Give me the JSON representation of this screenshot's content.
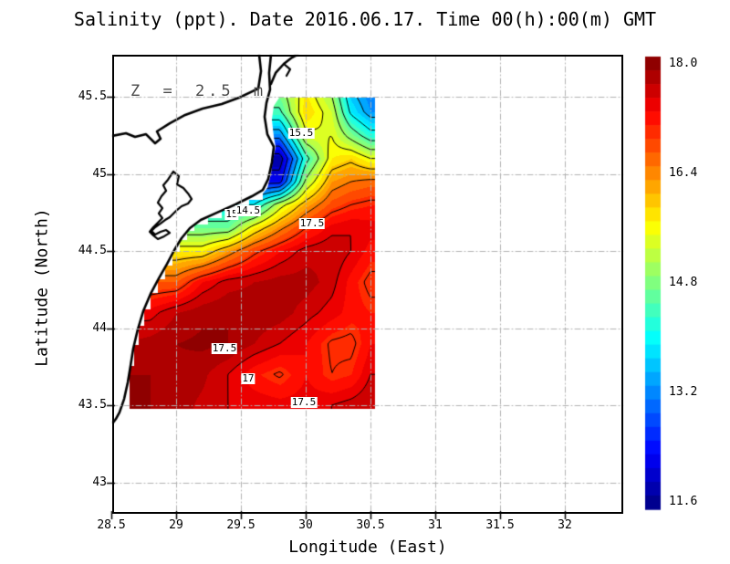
{
  "title": "Salinity (ppt). Date 2016.06.17. Time 00(h):00(m) GMT",
  "annotation": {
    "text": "Z = 2.5 m"
  },
  "axes": {
    "xlabel": "Longitude (East)",
    "ylabel": "Latitude (North)",
    "x_ticks": [
      "28.5",
      "29",
      "29.5",
      "30",
      "30.5",
      "31",
      "31.5",
      "32"
    ],
    "x_tick_values": [
      28.5,
      29,
      29.5,
      30,
      30.5,
      31,
      31.5,
      32
    ],
    "y_ticks": [
      "45.5",
      "45",
      "44.5",
      "44",
      "43.5",
      "43"
    ],
    "y_tick_values": [
      45.5,
      45,
      44.5,
      44,
      43.5,
      43
    ],
    "grid_x": [
      29,
      29.5,
      30,
      30.5,
      31,
      31.5,
      32
    ],
    "grid_y": [
      43,
      43.5,
      44,
      44.5,
      45,
      45.5
    ],
    "x_range": [
      28.5,
      32.45
    ],
    "y_range": [
      42.8,
      45.77
    ]
  },
  "colorbar": {
    "colormap": "jet",
    "min": 11.5,
    "max": 18.1,
    "step": 0.2,
    "tick_values": [
      18.0,
      16.4,
      14.8,
      13.2,
      11.6
    ],
    "tick_labels": [
      "18.0",
      "16.4",
      "14.8",
      "13.2",
      "11.6"
    ]
  },
  "chart_data": {
    "type": "heatmap",
    "variable": "Salinity",
    "units": "ppt",
    "date": "2016.06.17",
    "time": "00(h):00(m) GMT",
    "depth_label": "Z = 2.5 m",
    "colormap_range": [
      11.5,
      18.1
    ],
    "contour_interval": 0.5,
    "contour_levels": [
      12,
      12.5,
      13,
      13.5,
      14,
      14.5,
      15,
      15.5,
      16,
      16.5,
      17,
      17.5,
      18
    ],
    "lon": [
      28.6,
      28.8,
      29.0,
      29.2,
      29.4,
      29.6,
      29.8,
      30.0,
      30.2,
      30.35,
      30.5
    ],
    "lat": [
      45.55,
      45.4,
      45.25,
      45.1,
      44.95,
      44.8,
      44.65,
      44.5,
      44.3,
      44.1,
      43.9,
      43.7,
      43.5
    ],
    "values": [
      [
        null,
        null,
        null,
        null,
        null,
        null,
        14.9,
        15.7,
        14.9,
        13.5,
        13.1
      ],
      [
        null,
        null,
        null,
        null,
        null,
        null,
        14.4,
        15.9,
        15.3,
        13.9,
        13.3
      ],
      [
        null,
        null,
        null,
        null,
        null,
        null,
        13.2,
        15.4,
        15.5,
        14.8,
        14.2
      ],
      [
        null,
        null,
        null,
        null,
        null,
        null,
        11.7,
        14.3,
        15.7,
        15.9,
        15.5
      ],
      [
        null,
        null,
        null,
        null,
        null,
        null,
        12.3,
        15.1,
        16.3,
        16.5,
        16.6
      ],
      [
        null,
        null,
        null,
        null,
        null,
        14.0,
        15.3,
        16.2,
        16.8,
        17.0,
        17.1
      ],
      [
        null,
        null,
        null,
        null,
        14.7,
        15.7,
        16.4,
        17.0,
        17.4,
        17.5,
        17.4
      ],
      [
        null,
        null,
        null,
        15.7,
        16.3,
        16.9,
        17.3,
        17.6,
        17.7,
        17.5,
        17.2
      ],
      [
        null,
        null,
        16.7,
        17.3,
        17.6,
        17.7,
        17.8,
        17.8,
        17.6,
        17.2,
        16.9
      ],
      [
        null,
        17.4,
        17.7,
        17.85,
        17.9,
        17.85,
        17.8,
        17.6,
        17.4,
        17.2,
        17.1
      ],
      [
        17.7,
        17.8,
        17.9,
        17.95,
        17.9,
        17.7,
        17.5,
        17.3,
        16.95,
        16.9,
        17.3
      ],
      [
        17.9,
        17.9,
        17.85,
        17.75,
        17.5,
        17.15,
        16.95,
        17.3,
        17.0,
        17.1,
        17.5
      ],
      [
        17.95,
        17.9,
        17.8,
        17.65,
        17.5,
        17.45,
        17.4,
        17.4,
        17.5,
        17.6,
        17.7
      ]
    ],
    "contour_labels": [
      {
        "text": "15.5",
        "lon": 29.965,
        "lat": 45.263
      },
      {
        "text": "15",
        "lon": 29.43,
        "lat": 44.737
      },
      {
        "text": "14.5",
        "lon": 29.556,
        "lat": 44.76
      },
      {
        "text": "17.5",
        "lon": 30.049,
        "lat": 44.678
      },
      {
        "text": "17.5",
        "lon": 29.373,
        "lat": 43.867
      },
      {
        "text": "17",
        "lon": 29.556,
        "lat": 43.672
      },
      {
        "text": "17.5",
        "lon": 29.986,
        "lat": 43.518
      }
    ]
  },
  "map": {
    "data_region": [
      [
        29.796,
        45.494
      ],
      [
        30.535,
        45.494
      ],
      [
        30.535,
        43.476
      ],
      [
        28.641,
        43.476
      ],
      [
        28.641,
        43.754
      ],
      [
        28.676,
        43.754
      ],
      [
        28.676,
        43.891
      ],
      [
        28.711,
        43.891
      ],
      [
        28.711,
        44.015
      ],
      [
        28.754,
        44.015
      ],
      [
        28.754,
        44.121
      ],
      [
        28.803,
        44.121
      ],
      [
        28.803,
        44.228
      ],
      [
        28.859,
        44.228
      ],
      [
        28.859,
        44.317
      ],
      [
        28.915,
        44.317
      ],
      [
        28.915,
        44.405
      ],
      [
        28.972,
        44.405
      ],
      [
        28.972,
        44.494
      ],
      [
        29.028,
        44.494
      ],
      [
        29.028,
        44.571
      ],
      [
        29.085,
        44.571
      ],
      [
        29.085,
        44.63
      ],
      [
        29.141,
        44.63
      ],
      [
        29.141,
        44.672
      ],
      [
        29.246,
        44.672
      ],
      [
        29.246,
        44.713
      ],
      [
        29.352,
        44.713
      ],
      [
        29.352,
        44.76
      ],
      [
        29.458,
        44.76
      ],
      [
        29.458,
        44.796
      ],
      [
        29.563,
        44.796
      ],
      [
        29.563,
        44.831
      ],
      [
        29.669,
        44.831
      ],
      [
        29.669,
        44.873
      ],
      [
        29.704,
        44.908
      ],
      [
        29.732,
        44.997
      ],
      [
        29.746,
        45.086
      ],
      [
        29.768,
        45.175
      ],
      [
        29.754,
        45.24
      ],
      [
        29.739,
        45.352
      ],
      [
        29.754,
        45.441
      ]
    ],
    "coast_north": [
      [
        29.641,
        45.772
      ],
      [
        29.655,
        45.666
      ],
      [
        29.634,
        45.553
      ],
      [
        29.592,
        45.536
      ],
      [
        29.486,
        45.494
      ],
      [
        29.352,
        45.453
      ],
      [
        29.204,
        45.423
      ],
      [
        29.07,
        45.382
      ],
      [
        28.951,
        45.328
      ],
      [
        28.852,
        45.275
      ],
      [
        28.88,
        45.228
      ],
      [
        28.838,
        45.198
      ],
      [
        28.768,
        45.257
      ],
      [
        28.683,
        45.24
      ],
      [
        28.613,
        45.263
      ],
      [
        28.507,
        45.246
      ]
    ],
    "coast_main": [
      [
        29.732,
        45.772
      ],
      [
        29.718,
        45.654
      ],
      [
        29.725,
        45.547
      ],
      [
        29.697,
        45.459
      ],
      [
        29.683,
        45.37
      ],
      [
        29.704,
        45.257
      ],
      [
        29.754,
        45.175
      ],
      [
        29.739,
        45.074
      ],
      [
        29.711,
        44.967
      ],
      [
        29.669,
        44.896
      ],
      [
        29.585,
        44.855
      ],
      [
        29.458,
        44.802
      ],
      [
        29.317,
        44.749
      ],
      [
        29.19,
        44.701
      ],
      [
        29.106,
        44.648
      ],
      [
        29.042,
        44.583
      ],
      [
        28.986,
        44.506
      ],
      [
        28.93,
        44.417
      ],
      [
        28.866,
        44.322
      ],
      [
        28.803,
        44.222
      ],
      [
        28.746,
        44.109
      ],
      [
        28.704,
        43.991
      ],
      [
        28.669,
        43.867
      ],
      [
        28.648,
        43.754
      ],
      [
        28.627,
        43.648
      ],
      [
        28.599,
        43.541
      ],
      [
        28.563,
        43.453
      ],
      [
        28.535,
        43.411
      ],
      [
        28.514,
        43.388
      ]
    ],
    "coast_spit": [
      [
        29.732,
        45.583
      ],
      [
        29.768,
        45.654
      ],
      [
        29.831,
        45.713
      ],
      [
        29.894,
        45.754
      ],
      [
        29.968,
        45.787
      ]
    ],
    "coast_spit_spur": [
      [
        29.831,
        45.713
      ],
      [
        29.88,
        45.678
      ],
      [
        29.852,
        45.636
      ]
    ],
    "lagoon": [
      [
        28.979,
        45.015
      ],
      [
        29.021,
        44.985
      ],
      [
        29.007,
        44.932
      ],
      [
        29.056,
        44.908
      ],
      [
        29.092,
        44.873
      ],
      [
        29.12,
        44.837
      ],
      [
        29.092,
        44.808
      ],
      [
        29.042,
        44.79
      ],
      [
        29.007,
        44.766
      ],
      [
        28.979,
        44.743
      ],
      [
        28.951,
        44.719
      ],
      [
        28.915,
        44.701
      ],
      [
        28.88,
        44.678
      ],
      [
        28.838,
        44.654
      ],
      [
        28.81,
        44.63
      ],
      [
        28.838,
        44.607
      ],
      [
        28.88,
        44.624
      ],
      [
        28.923,
        44.636
      ],
      [
        28.951,
        44.618
      ],
      [
        28.908,
        44.595
      ],
      [
        28.859,
        44.577
      ],
      [
        28.824,
        44.601
      ],
      [
        28.796,
        44.624
      ],
      [
        28.824,
        44.654
      ],
      [
        28.859,
        44.683
      ],
      [
        28.894,
        44.713
      ],
      [
        28.866,
        44.743
      ],
      [
        28.894,
        44.778
      ],
      [
        28.859,
        44.814
      ],
      [
        28.887,
        44.855
      ],
      [
        28.923,
        44.891
      ],
      [
        28.901,
        44.926
      ],
      [
        28.937,
        44.962
      ]
    ]
  },
  "colors": {
    "contour_line": "#000000",
    "coastline": "#000000",
    "gridline": "#b2b2b2",
    "land": "#ffffff",
    "frame": "#000000",
    "label_background": "#ffffff",
    "text": "#000000",
    "annotation_text": "#4a4a4a"
  }
}
